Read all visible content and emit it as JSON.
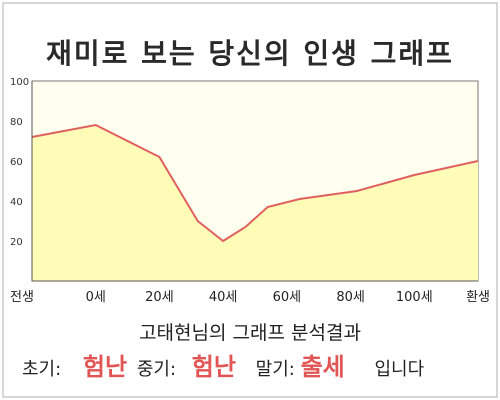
{
  "title": "재미로 보는 당신의 인생 그래프",
  "chart_data": {
    "type": "area",
    "title": "재미로 보는 당신의 인생 그래프",
    "categories": [
      "전생",
      "0세",
      "20세",
      "40세",
      "60세",
      "80세",
      "100세",
      "환생"
    ],
    "x": [
      0,
      1,
      2,
      3,
      4,
      5,
      6,
      7
    ],
    "y_ticks": [
      20,
      40,
      60,
      80,
      100
    ],
    "ylim": [
      0,
      100
    ],
    "grid": false,
    "series": [
      {
        "x": [
          0,
          1,
          2,
          2.6,
          3,
          3.35,
          3.7,
          4.2,
          5.1,
          6,
          7
        ],
        "values": [
          72,
          78,
          62,
          30,
          20,
          27,
          37,
          41,
          45,
          53,
          60
        ]
      }
    ],
    "colors": {
      "line": "#e06060",
      "fill": "#fffcb8",
      "plot_bg": "#fffff0"
    }
  },
  "analysis": {
    "title": "고태현님의 그래프 분석결과",
    "early_label": "초기:",
    "early_value": "험난",
    "middle_label": "중기:",
    "middle_value": "험난",
    "late_label": "말기:",
    "late_value": "출세",
    "suffix": "입니다"
  },
  "colors": {
    "highlight": "#e25555",
    "frame": "#d6d6d6"
  }
}
